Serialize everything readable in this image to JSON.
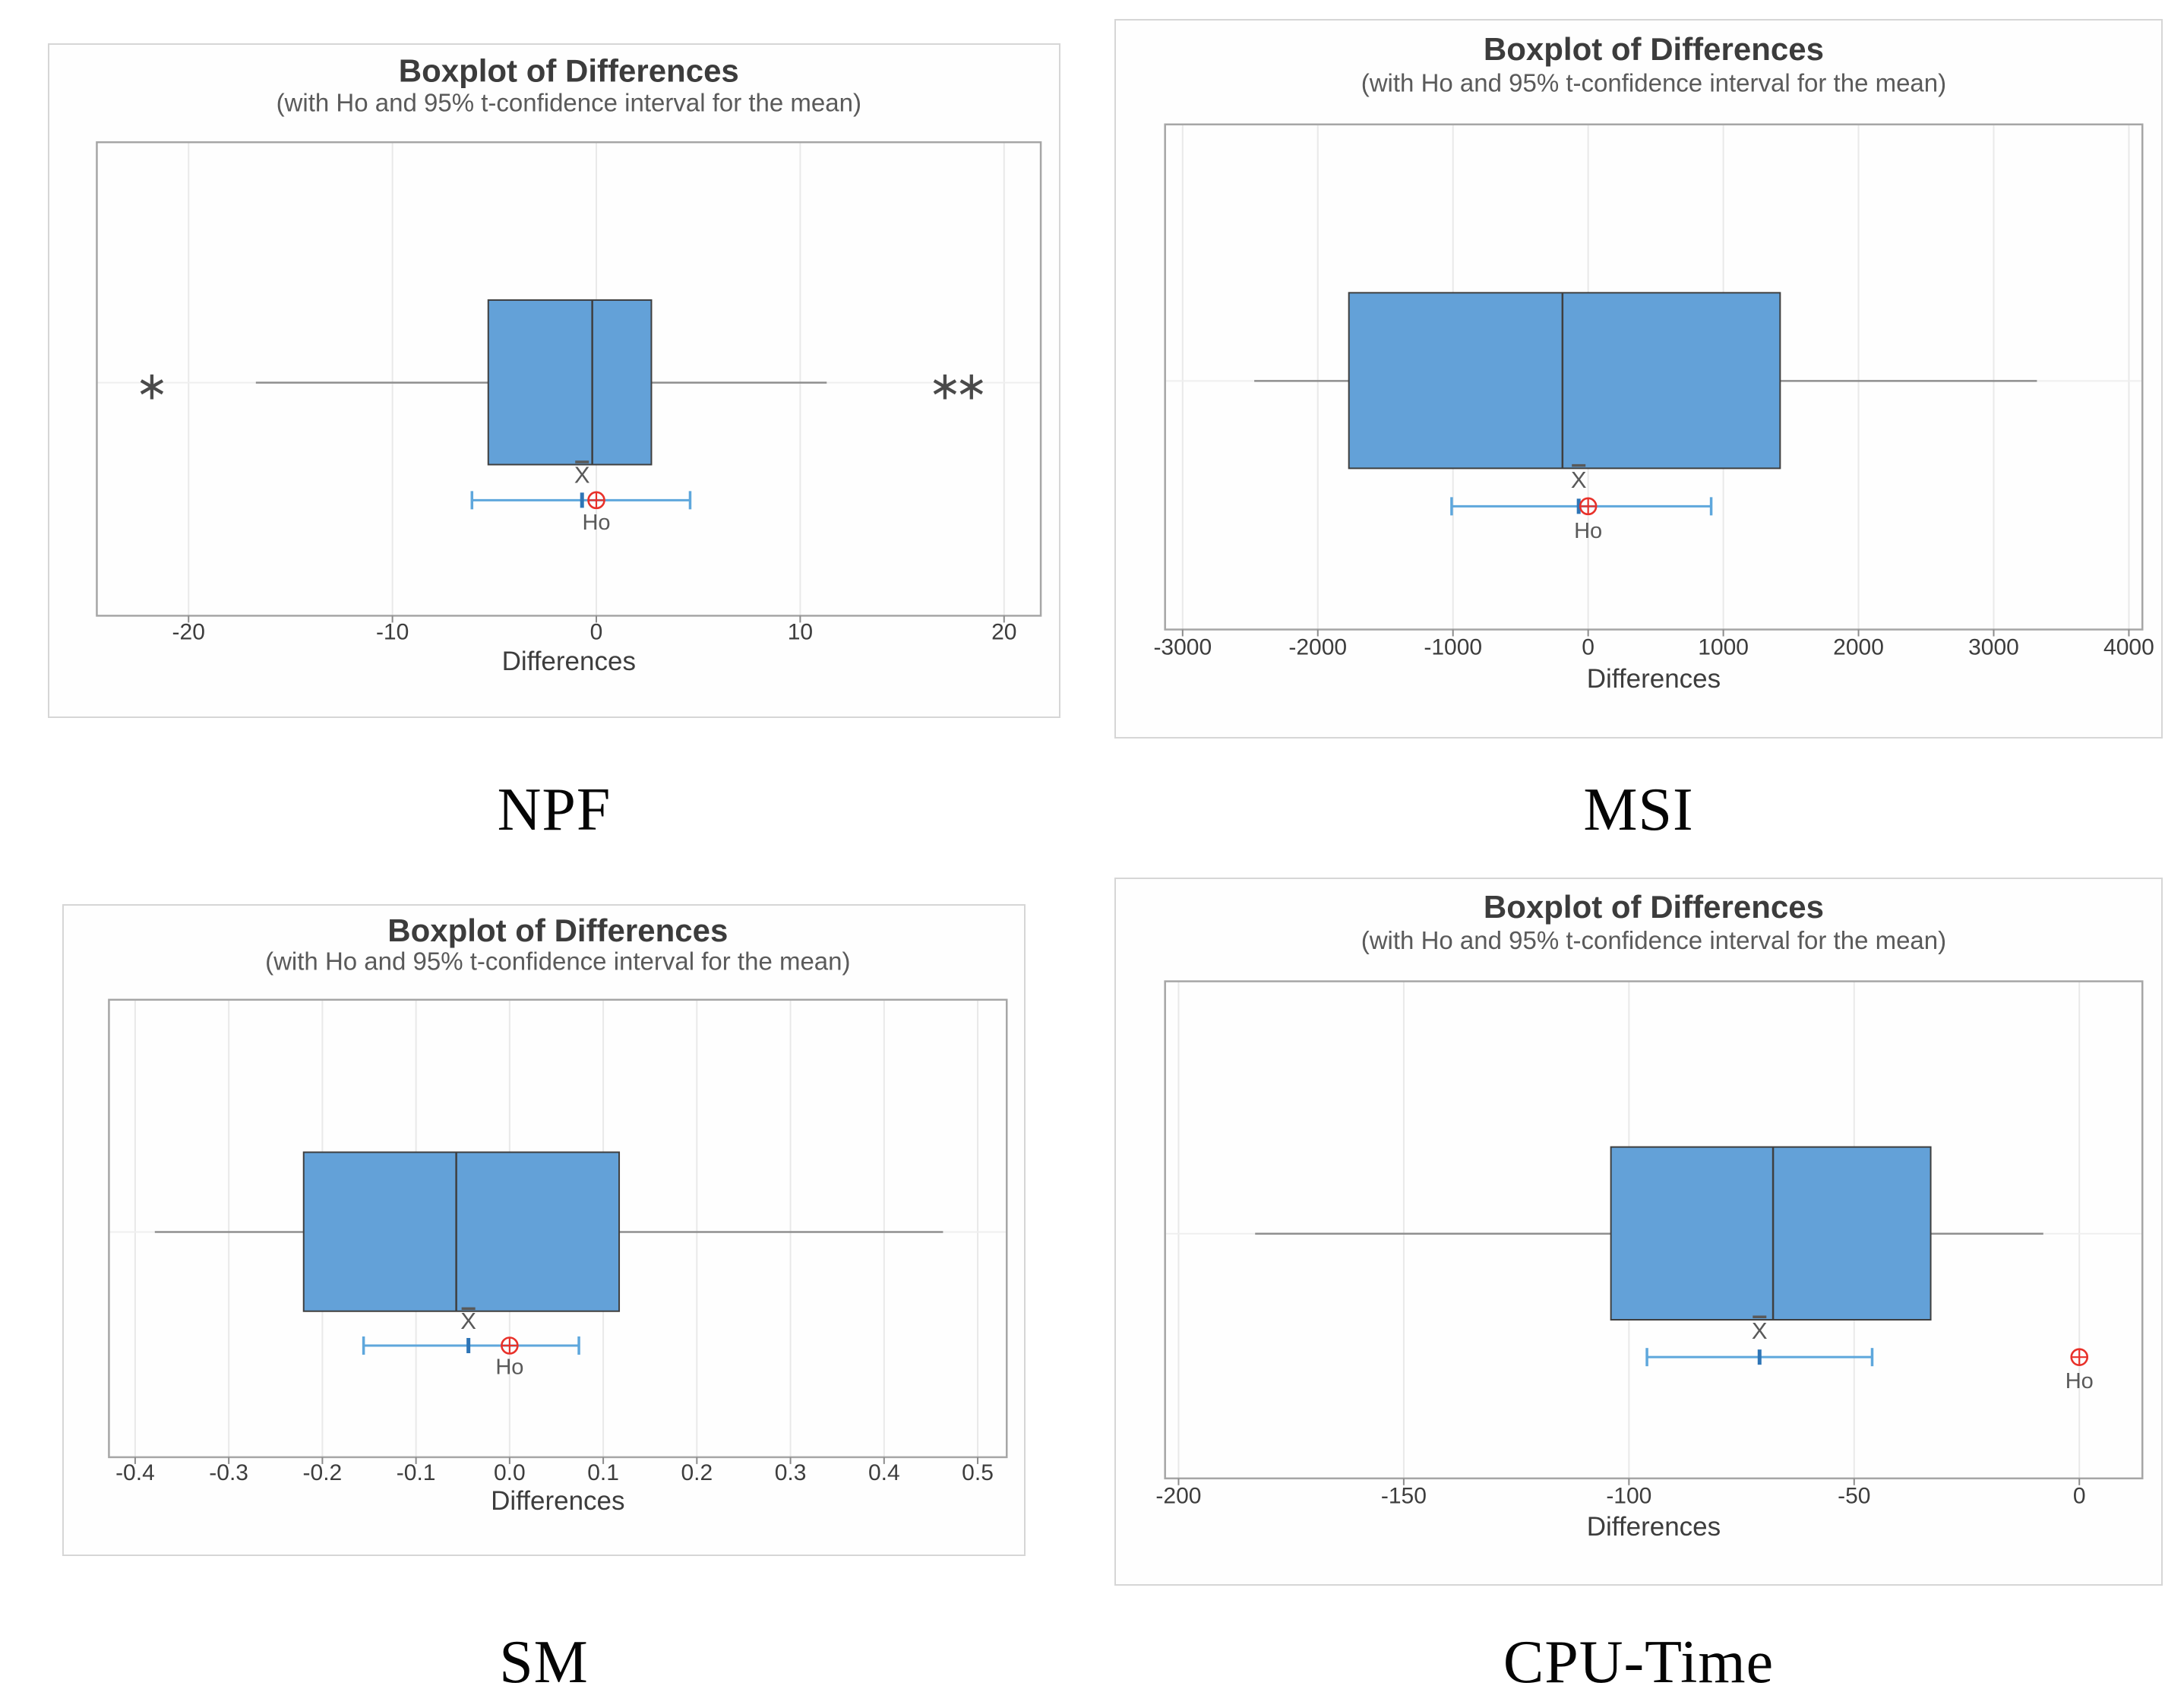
{
  "page": {
    "background": "#ffffff"
  },
  "shared": {
    "title": "Boxplot of Differences",
    "subtitle": "(with Ho and 95% t-confidence interval for the mean)",
    "xlabel": "Differences",
    "mean_symbol": "X",
    "ho_label": "Ho"
  },
  "colors": {
    "box_fill": "#63A1D8",
    "box_stroke": "#3f3f3f",
    "median": "#3f3f3f",
    "whisker": "#8f8f8f",
    "frame": "#a6a6a6",
    "grid": "#e9e9e9",
    "grid_h": "#efefef",
    "tick": "#8c8c8c",
    "ci_line": "#5ea7dc",
    "ci_mean_tick": "#2e75b6",
    "ho_marker": "#e8312a",
    "title_text": "#3c3c3c",
    "subtitle_text": "#5a5a5a",
    "axis_text": "#3d3d3d",
    "annot_text": "#595959",
    "outlier": "#4a4a4a"
  },
  "chart_data": [
    {
      "type": "boxplot",
      "label": "NPF",
      "title": "Boxplot of Differences",
      "subtitle": "(with Ho and 95% t-confidence interval for the mean)",
      "xlabel": "Differences",
      "xlim": [
        -24.5,
        21.8
      ],
      "tick_values": [
        -20,
        -10,
        0,
        10,
        20
      ],
      "tick_labels": [
        "-20",
        "-10",
        "0",
        "10",
        "20"
      ],
      "box": {
        "q1": -5.3,
        "median": -0.2,
        "q3": 2.7,
        "whisker_low": -16.7,
        "whisker_high": 11.3
      },
      "outliers": [
        -21.8,
        17.1,
        18.4
      ],
      "ci": {
        "lower": -6.1,
        "upper": 4.6,
        "mean": -0.7,
        "ho": 0
      }
    },
    {
      "type": "boxplot",
      "label": "MSI",
      "title": "Boxplot of Differences",
      "subtitle": "(with Ho and 95% t-confidence interval for the mean)",
      "xlabel": "Differences",
      "xlim": [
        -3130,
        4100
      ],
      "tick_values": [
        -3000,
        -2000,
        -1000,
        0,
        1000,
        2000,
        3000,
        4000
      ],
      "tick_labels": [
        "-3000",
        "-2000",
        "-1000",
        "0",
        "1000",
        "2000",
        "3000",
        "4000"
      ],
      "box": {
        "q1": -1770,
        "median": -190,
        "q3": 1420,
        "whisker_low": -2470,
        "whisker_high": 3320
      },
      "outliers": [],
      "ci": {
        "lower": -1010,
        "upper": 910,
        "mean": -70,
        "ho": 0
      }
    },
    {
      "type": "boxplot",
      "label": "SM",
      "title": "Boxplot of Differences",
      "subtitle": "(with Ho and 95% t-confidence interval for the mean)",
      "xlabel": "Differences",
      "xlim": [
        -0.428,
        0.531
      ],
      "tick_values": [
        -0.4,
        -0.3,
        -0.2,
        -0.1,
        0.0,
        0.1,
        0.2,
        0.3,
        0.4,
        0.5
      ],
      "tick_labels": [
        "-0.4",
        "-0.3",
        "-0.2",
        "-0.1",
        "0.0",
        "0.1",
        "0.2",
        "0.3",
        "0.4",
        "0.5"
      ],
      "box": {
        "q1": -0.22,
        "median": -0.057,
        "q3": 0.117,
        "whisker_low": -0.379,
        "whisker_high": 0.463
      },
      "outliers": [],
      "ci": {
        "lower": -0.156,
        "upper": 0.074,
        "mean": -0.044,
        "ho": 0
      }
    },
    {
      "type": "boxplot",
      "label": "CPU-Time",
      "title": "Boxplot of Differences",
      "subtitle": "(with Ho and 95% t-confidence interval for the mean)",
      "xlabel": "Differences",
      "xlim": [
        -203,
        14
      ],
      "tick_values": [
        -200,
        -150,
        -100,
        -50,
        0
      ],
      "tick_labels": [
        "-200",
        "-150",
        "-100",
        "-50",
        "0"
      ],
      "box": {
        "q1": -104,
        "median": -68,
        "q3": -33,
        "whisker_low": -183,
        "whisker_high": -8
      },
      "outliers": [],
      "ci": {
        "lower": -96,
        "upper": -46,
        "mean": -71,
        "ho": 0
      }
    }
  ]
}
